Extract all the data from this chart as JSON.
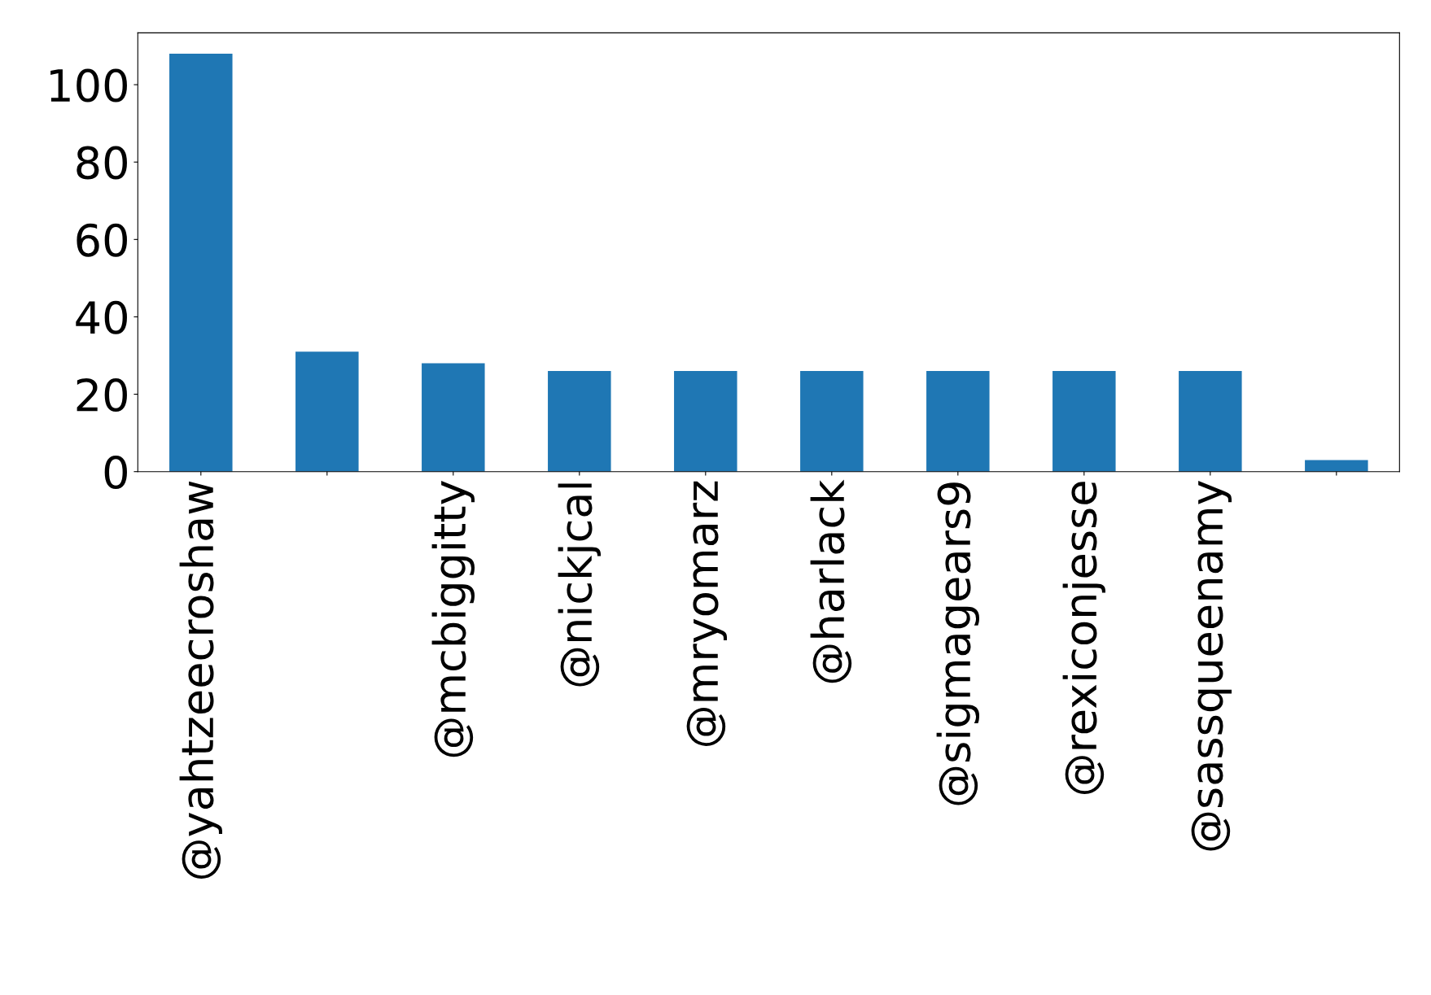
{
  "chart_data": {
    "type": "bar",
    "categories": [
      "@yahtzeecroshaw",
      null,
      "@mcbiggitty",
      "@nickjcal",
      "@mryomarz",
      "@harlack",
      "@sigmagears9",
      "@rexiconjesse",
      "@sassqueenamy",
      null
    ],
    "values": [
      108,
      31,
      28,
      26,
      26,
      26,
      26,
      26,
      26,
      3
    ],
    "color": "#1f77b4",
    "ylim": [
      0,
      113.4
    ],
    "yticks": [
      0,
      20,
      40,
      60,
      80,
      100
    ],
    "grid": false,
    "legend": false
  }
}
